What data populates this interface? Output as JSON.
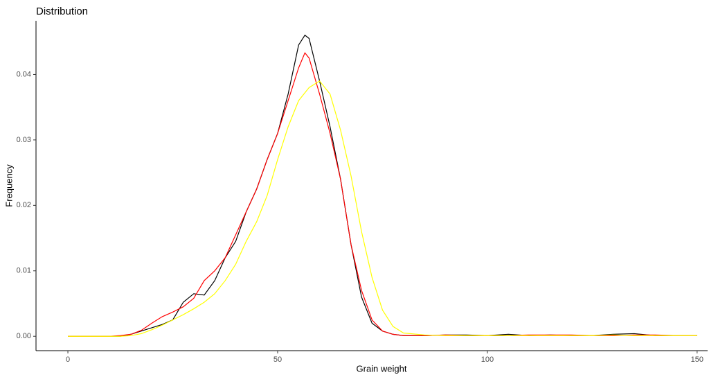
{
  "chart_data": {
    "type": "line",
    "title": "Distribution",
    "x_label": "Grain weight",
    "y_label": "Frequency",
    "x": [
      0,
      5,
      10,
      12.5,
      15,
      17.5,
      20,
      22.5,
      25,
      27.5,
      30,
      32.5,
      35,
      37.5,
      40,
      42.5,
      45,
      47.5,
      50,
      52.5,
      55,
      56.5,
      57.5,
      60,
      62.5,
      65,
      67.5,
      70,
      72.5,
      75,
      77.5,
      80,
      85,
      90,
      95,
      100,
      105,
      110,
      115,
      120,
      125,
      130,
      135,
      140,
      145,
      150
    ],
    "series": [
      {
        "color": "#000000",
        "values": [
          0,
          0,
          0,
          0,
          0.0003,
          0.0008,
          0.0013,
          0.0018,
          0.0025,
          0.0052,
          0.0065,
          0.0063,
          0.0085,
          0.012,
          0.0145,
          0.019,
          0.0225,
          0.027,
          0.031,
          0.037,
          0.0445,
          0.046,
          0.0455,
          0.039,
          0.032,
          0.024,
          0.014,
          0.006,
          0.002,
          0.0008,
          0.0003,
          0.0001,
          0.0001,
          0.0002,
          0.0002,
          0.0001,
          0.0003,
          0.0001,
          0.0002,
          0.0001,
          0.0001,
          0.0003,
          0.0004,
          0.0001,
          0.0001,
          0.0001
        ]
      },
      {
        "color": "#ff0000",
        "values": [
          0,
          0,
          0,
          0.0001,
          0.0003,
          0.0009,
          0.002,
          0.003,
          0.0037,
          0.0045,
          0.0058,
          0.0085,
          0.01,
          0.012,
          0.0155,
          0.019,
          0.0225,
          0.027,
          0.031,
          0.036,
          0.041,
          0.0433,
          0.0425,
          0.037,
          0.031,
          0.024,
          0.014,
          0.007,
          0.0025,
          0.0008,
          0.0003,
          0.0001,
          0.0001,
          0.0002,
          0.0001,
          0.0001,
          0.0001,
          0.0002,
          0.0002,
          0.0002,
          0.0001,
          0.0001,
          0.0002,
          0.0002,
          0.0001,
          0.0001
        ]
      },
      {
        "color": "#ffff00",
        "values": [
          0,
          0,
          0,
          0,
          0.0001,
          0.0004,
          0.001,
          0.0017,
          0.0025,
          0.0033,
          0.0042,
          0.0052,
          0.0065,
          0.0085,
          0.011,
          0.0145,
          0.0175,
          0.0215,
          0.027,
          0.032,
          0.036,
          0.0372,
          0.038,
          0.039,
          0.037,
          0.0315,
          0.0245,
          0.016,
          0.009,
          0.004,
          0.0015,
          0.0005,
          0.0002,
          0.0001,
          0.0001,
          0.0001,
          0.0001,
          0.0001,
          0.0001,
          0.0001,
          0.0001,
          0.0002,
          0.0001,
          0.0001,
          0.0001,
          0.0001
        ]
      }
    ],
    "xlim": [
      -7.6,
      152.5
    ],
    "xticks": [
      0,
      50,
      100,
      150
    ],
    "ylim": [
      -0.0022,
      0.0482
    ],
    "yticks": [
      {
        "value": 0,
        "label": "0.00"
      },
      {
        "value": 0.01,
        "label": "0.01"
      },
      {
        "value": 0.02,
        "label": "0.02"
      },
      {
        "value": 0.03,
        "label": "0.03"
      },
      {
        "value": 0.04,
        "label": "0.04"
      }
    ],
    "grid": false
  }
}
